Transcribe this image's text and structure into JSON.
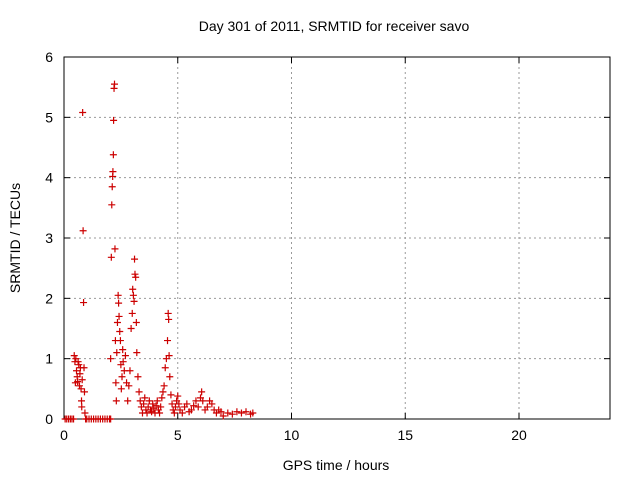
{
  "chart_data": {
    "type": "scatter",
    "title": "Day 301 of 2011, SRMTID for receiver savo",
    "xlabel": "GPS time / hours",
    "ylabel": "SRMTID / TECUs",
    "xlim": [
      0,
      24
    ],
    "ylim": [
      0,
      6
    ],
    "xticks": [
      0,
      5,
      10,
      15,
      20
    ],
    "yticks": [
      0,
      1,
      2,
      3,
      4,
      5,
      6
    ],
    "grid": true,
    "marker": "plus",
    "series": [
      {
        "name": "savo",
        "color": "#cc0000",
        "points": [
          [
            0.05,
            0
          ],
          [
            0.12,
            0
          ],
          [
            0.2,
            0
          ],
          [
            0.28,
            0
          ],
          [
            0.35,
            0
          ],
          [
            0.42,
            0
          ],
          [
            0.45,
            1.05
          ],
          [
            0.48,
            0.95
          ],
          [
            0.5,
            0.6
          ],
          [
            0.52,
            1.0
          ],
          [
            0.55,
            0.8
          ],
          [
            0.58,
            0.7
          ],
          [
            0.6,
            0.62
          ],
          [
            0.62,
            0.95
          ],
          [
            0.65,
            0.9
          ],
          [
            0.68,
            0.55
          ],
          [
            0.7,
            0.75
          ],
          [
            0.72,
            0.85
          ],
          [
            0.75,
            0.5
          ],
          [
            0.77,
            0.3
          ],
          [
            0.78,
            0.2
          ],
          [
            0.8,
            0.65
          ],
          [
            0.82,
            5.08
          ],
          [
            0.84,
            3.12
          ],
          [
            0.86,
            1.93
          ],
          [
            0.88,
            0.85
          ],
          [
            0.9,
            0.45
          ],
          [
            0.92,
            0.1
          ],
          [
            0.95,
            0
          ],
          [
            1.0,
            0
          ],
          [
            1.1,
            0
          ],
          [
            1.2,
            0
          ],
          [
            1.3,
            0
          ],
          [
            1.4,
            0
          ],
          [
            1.5,
            0
          ],
          [
            1.6,
            0
          ],
          [
            1.7,
            0
          ],
          [
            1.8,
            0
          ],
          [
            1.9,
            0
          ],
          [
            2.0,
            0
          ],
          [
            2.05,
            0
          ],
          [
            2.05,
            1.0
          ],
          [
            2.08,
            2.68
          ],
          [
            2.1,
            3.55
          ],
          [
            2.12,
            3.85
          ],
          [
            2.14,
            4.02
          ],
          [
            2.15,
            4.1
          ],
          [
            2.17,
            4.38
          ],
          [
            2.18,
            4.95
          ],
          [
            2.2,
            5.48
          ],
          [
            2.22,
            5.55
          ],
          [
            2.24,
            2.82
          ],
          [
            2.26,
            1.3
          ],
          [
            2.28,
            0.6
          ],
          [
            2.3,
            0.3
          ],
          [
            2.32,
            1.1
          ],
          [
            2.35,
            1.6
          ],
          [
            2.38,
            2.05
          ],
          [
            2.4,
            1.92
          ],
          [
            2.42,
            1.7
          ],
          [
            2.45,
            1.45
          ],
          [
            2.48,
            1.3
          ],
          [
            2.5,
            0.9
          ],
          [
            2.52,
            0.5
          ],
          [
            2.55,
            0.7
          ],
          [
            2.58,
            1.15
          ],
          [
            2.6,
            0.95
          ],
          [
            2.65,
            0.8
          ],
          [
            2.7,
            1.05
          ],
          [
            2.75,
            0.6
          ],
          [
            2.8,
            0.3
          ],
          [
            2.85,
            0.55
          ],
          [
            2.9,
            0.8
          ],
          [
            2.95,
            1.5
          ],
          [
            3.0,
            1.75
          ],
          [
            3.02,
            2.15
          ],
          [
            3.05,
            2.05
          ],
          [
            3.08,
            1.95
          ],
          [
            3.1,
            2.65
          ],
          [
            3.12,
            2.4
          ],
          [
            3.15,
            2.35
          ],
          [
            3.18,
            1.6
          ],
          [
            3.2,
            1.1
          ],
          [
            3.25,
            0.7
          ],
          [
            3.3,
            0.45
          ],
          [
            3.35,
            0.3
          ],
          [
            3.4,
            0.2
          ],
          [
            3.45,
            0.1
          ],
          [
            3.5,
            0.25
          ],
          [
            3.55,
            0.35
          ],
          [
            3.6,
            0.15
          ],
          [
            3.65,
            0.1
          ],
          [
            3.7,
            0.2
          ],
          [
            3.75,
            0.3
          ],
          [
            3.8,
            0.15
          ],
          [
            3.85,
            0.12
          ],
          [
            3.9,
            0.25
          ],
          [
            3.95,
            0.18
          ],
          [
            4.0,
            0.1
          ],
          [
            4.05,
            0.22
          ],
          [
            4.1,
            0.3
          ],
          [
            4.15,
            0.15
          ],
          [
            4.2,
            0.1
          ],
          [
            4.25,
            0.2
          ],
          [
            4.3,
            0.35
          ],
          [
            4.35,
            0.45
          ],
          [
            4.4,
            0.55
          ],
          [
            4.45,
            0.85
          ],
          [
            4.5,
            1.0
          ],
          [
            4.55,
            1.3
          ],
          [
            4.58,
            1.75
          ],
          [
            4.6,
            1.65
          ],
          [
            4.62,
            1.05
          ],
          [
            4.65,
            0.7
          ],
          [
            4.7,
            0.4
          ],
          [
            4.75,
            0.25
          ],
          [
            4.8,
            0.15
          ],
          [
            4.85,
            0.1
          ],
          [
            4.9,
            0.2
          ],
          [
            4.95,
            0.3
          ],
          [
            5.0,
            0.38
          ],
          [
            5.05,
            0.25
          ],
          [
            5.1,
            0.15
          ],
          [
            5.2,
            0.1
          ],
          [
            5.3,
            0.2
          ],
          [
            5.4,
            0.25
          ],
          [
            5.5,
            0.12
          ],
          [
            5.6,
            0.15
          ],
          [
            5.7,
            0.22
          ],
          [
            5.8,
            0.3
          ],
          [
            5.9,
            0.2
          ],
          [
            6.0,
            0.35
          ],
          [
            6.05,
            0.45
          ],
          [
            6.1,
            0.3
          ],
          [
            6.2,
            0.15
          ],
          [
            6.3,
            0.2
          ],
          [
            6.4,
            0.3
          ],
          [
            6.5,
            0.25
          ],
          [
            6.6,
            0.15
          ],
          [
            6.7,
            0.1
          ],
          [
            6.8,
            0.15
          ],
          [
            6.9,
            0.12
          ],
          [
            7.0,
            0.05
          ],
          [
            7.2,
            0.1
          ],
          [
            7.4,
            0.08
          ],
          [
            7.6,
            0.12
          ],
          [
            7.8,
            0.1
          ],
          [
            8.0,
            0.12
          ],
          [
            8.2,
            0.08
          ],
          [
            8.3,
            0.1
          ]
        ]
      }
    ]
  }
}
